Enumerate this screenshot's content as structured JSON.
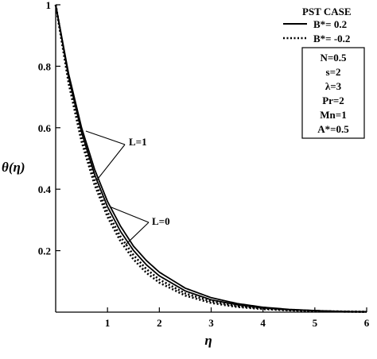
{
  "chart_data": {
    "type": "line",
    "xlabel": "η",
    "ylabel": "θ(η)",
    "xlim": [
      0,
      6
    ],
    "ylim": [
      0,
      1
    ],
    "x_ticks": [
      "1",
      "2",
      "3",
      "4",
      "5",
      "6"
    ],
    "y_ticks": [
      "0.2",
      "0.4",
      "0.6",
      "0.8",
      "1"
    ],
    "legend_title": "PST CASE",
    "legend_placement": "top-right",
    "parameters": [
      "N=0.5",
      "s=2",
      "λ=3",
      "Pr=2",
      "Mn=1",
      "A*=0.5"
    ],
    "annotations": [
      "L=1",
      "L=0"
    ],
    "series": [
      {
        "name": "B*= 0.2",
        "style": "solid",
        "group": "L=1",
        "x": [
          0,
          0.25,
          0.5,
          0.75,
          1,
          1.25,
          1.5,
          1.75,
          2,
          2.5,
          3,
          3.5,
          4,
          4.5,
          5,
          5.5,
          6
        ],
        "values": [
          1,
          0.775,
          0.6,
          0.465,
          0.36,
          0.28,
          0.215,
          0.168,
          0.13,
          0.078,
          0.047,
          0.028,
          0.016,
          0.009,
          0.005,
          0.002,
          0.001
        ]
      },
      {
        "name": "B*= -0.2",
        "style": "dotted",
        "group": "L=1",
        "x": [
          0,
          0.25,
          0.5,
          0.75,
          1,
          1.25,
          1.5,
          1.75,
          2,
          2.5,
          3,
          3.5,
          4,
          4.5,
          5,
          5.5,
          6
        ],
        "values": [
          1,
          0.755,
          0.57,
          0.43,
          0.325,
          0.246,
          0.186,
          0.14,
          0.106,
          0.061,
          0.035,
          0.02,
          0.012,
          0.007,
          0.004,
          0.002,
          0.001
        ]
      },
      {
        "name": "B*= 0.2",
        "style": "solid",
        "group": "L=0",
        "x": [
          0,
          0.25,
          0.5,
          0.75,
          1,
          1.25,
          1.5,
          1.75,
          2,
          2.5,
          3,
          3.5,
          4,
          4.5,
          5,
          5.5,
          6
        ],
        "values": [
          1,
          0.765,
          0.585,
          0.448,
          0.343,
          0.263,
          0.201,
          0.154,
          0.118,
          0.069,
          0.04,
          0.024,
          0.014,
          0.008,
          0.005,
          0.002,
          0.001
        ]
      },
      {
        "name": "B*= -0.2",
        "style": "dotted",
        "group": "L=0",
        "x": [
          0,
          0.25,
          0.5,
          0.75,
          1,
          1.25,
          1.5,
          1.75,
          2,
          2.5,
          3,
          3.5,
          4,
          4.5,
          5,
          5.5,
          6
        ],
        "values": [
          1,
          0.745,
          0.555,
          0.415,
          0.31,
          0.231,
          0.172,
          0.128,
          0.096,
          0.054,
          0.03,
          0.017,
          0.01,
          0.006,
          0.003,
          0.002,
          0.001
        ]
      }
    ]
  }
}
